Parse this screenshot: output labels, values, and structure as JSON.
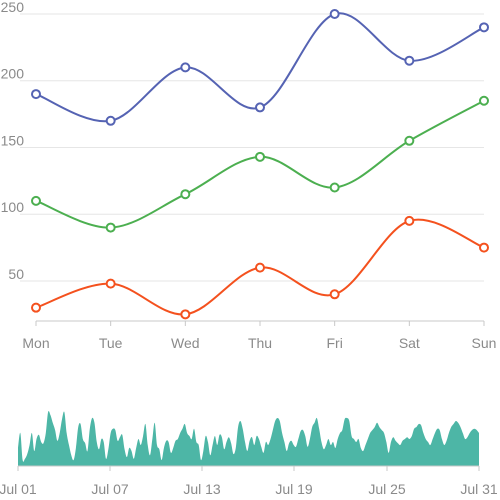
{
  "chart_data": [
    {
      "type": "line",
      "categories": [
        "Mon",
        "Tue",
        "Wed",
        "Thu",
        "Fri",
        "Sat",
        "Sun"
      ],
      "ylim": [
        20,
        250
      ],
      "yticks": [
        50,
        100,
        150,
        200,
        250
      ],
      "grid": true,
      "smooth": true,
      "series": [
        {
          "values": [
            190,
            170,
            210,
            180,
            250,
            215,
            240
          ],
          "color": "#5563b3"
        },
        {
          "values": [
            110,
            90,
            115,
            143,
            120,
            155,
            185
          ],
          "color": "#4caf50"
        },
        {
          "values": [
            30,
            48,
            25,
            60,
            40,
            95,
            75
          ],
          "color": "#f4511e"
        }
      ]
    },
    {
      "type": "area",
      "color": "#4db6a6",
      "xticks": [
        "Jul 01",
        "Jul 07",
        "Jul 13",
        "Jul 19",
        "Jul 25",
        "Jul 31"
      ],
      "ylim": [
        0,
        100
      ],
      "values": [
        30,
        55,
        10,
        12,
        20,
        35,
        55,
        25,
        45,
        52,
        40,
        38,
        55,
        90,
        85,
        72,
        60,
        42,
        55,
        78,
        90,
        55,
        35,
        18,
        10,
        30,
        65,
        70,
        45,
        38,
        25,
        62,
        80,
        72,
        40,
        28,
        45,
        40,
        12,
        28,
        55,
        62,
        60,
        42,
        48,
        52,
        28,
        15,
        30,
        25,
        12,
        30,
        45,
        35,
        50,
        70,
        35,
        18,
        45,
        72,
        35,
        28,
        10,
        30,
        42,
        40,
        22,
        30,
        42,
        45,
        55,
        62,
        70,
        55,
        50,
        45,
        62,
        40,
        35,
        10,
        25,
        50,
        40,
        18,
        35,
        50,
        35,
        52,
        48,
        28,
        40,
        48,
        38,
        20,
        30,
        65,
        75,
        62,
        40,
        25,
        42,
        48,
        35,
        50,
        45,
        32,
        22,
        40,
        35,
        45,
        60,
        75,
        80,
        75,
        55,
        40,
        25,
        38,
        42,
        35,
        32,
        45,
        58,
        60,
        50,
        32,
        45,
        65,
        72,
        80,
        62,
        40,
        28,
        35,
        45,
        35,
        40,
        30,
        45,
        55,
        60,
        78,
        80,
        75,
        50,
        45,
        40,
        45,
        30,
        25,
        35,
        45,
        55,
        60,
        65,
        72,
        65,
        60,
        55,
        40,
        22,
        40,
        48,
        42,
        38,
        35,
        42,
        45,
        48,
        45,
        50,
        62,
        65,
        70,
        68,
        55,
        45,
        40,
        35,
        45,
        55,
        62,
        60,
        45,
        35,
        42,
        55,
        65,
        70,
        75,
        72,
        65,
        55,
        45,
        48,
        55,
        60,
        62,
        60,
        55
      ]
    }
  ]
}
